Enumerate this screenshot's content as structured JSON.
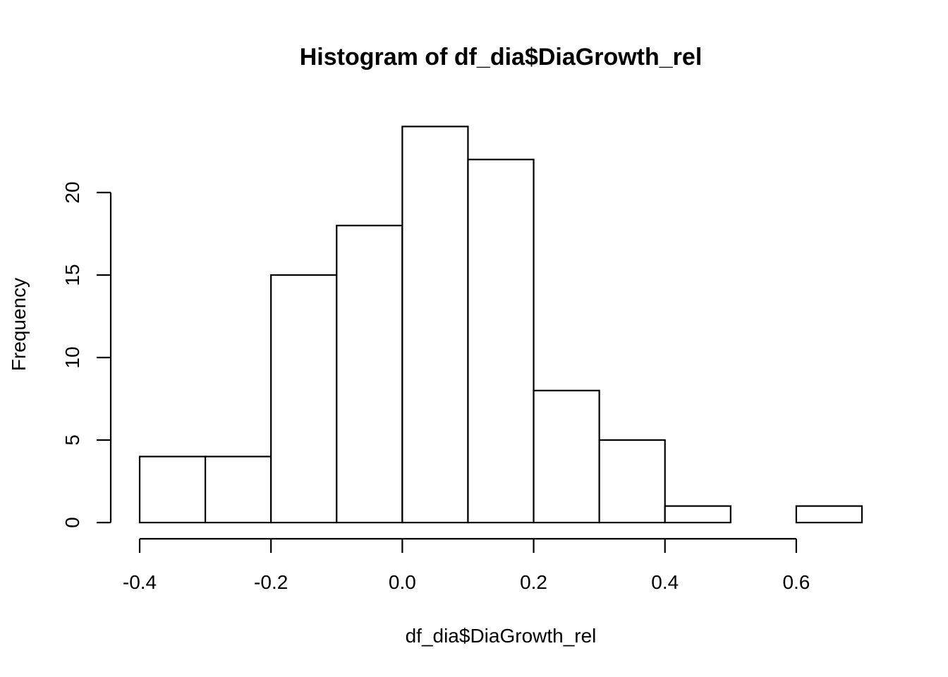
{
  "chart_data": {
    "type": "bar",
    "title": "Histogram of df_dia$DiaGrowth_rel",
    "xlabel": "df_dia$DiaGrowth_rel",
    "ylabel": "Frequency",
    "bins": [
      {
        "start": -0.4,
        "end": -0.3,
        "count": 4
      },
      {
        "start": -0.3,
        "end": -0.2,
        "count": 4
      },
      {
        "start": -0.2,
        "end": -0.1,
        "count": 15
      },
      {
        "start": -0.1,
        "end": 0.0,
        "count": 18
      },
      {
        "start": 0.0,
        "end": 0.1,
        "count": 24
      },
      {
        "start": 0.1,
        "end": 0.2,
        "count": 22
      },
      {
        "start": 0.2,
        "end": 0.3,
        "count": 8
      },
      {
        "start": 0.3,
        "end": 0.4,
        "count": 5
      },
      {
        "start": 0.4,
        "end": 0.5,
        "count": 1
      },
      {
        "start": 0.5,
        "end": 0.6,
        "count": 0
      },
      {
        "start": 0.6,
        "end": 0.7,
        "count": 1
      }
    ],
    "xticks": [
      -0.4,
      -0.2,
      0.0,
      0.2,
      0.4,
      0.6
    ],
    "xtick_labels": [
      "-0.4",
      "-0.2",
      "0.0",
      "0.2",
      "0.4",
      "0.6"
    ],
    "yticks": [
      0,
      5,
      10,
      15,
      20
    ],
    "ytick_labels": [
      "0",
      "5",
      "10",
      "15",
      "20"
    ],
    "xlim": [
      -0.4,
      0.7
    ],
    "ylim": [
      0,
      24
    ],
    "grid": false,
    "legend": "none",
    "bar_fill": "#ffffff",
    "bar_stroke": "#000000"
  }
}
